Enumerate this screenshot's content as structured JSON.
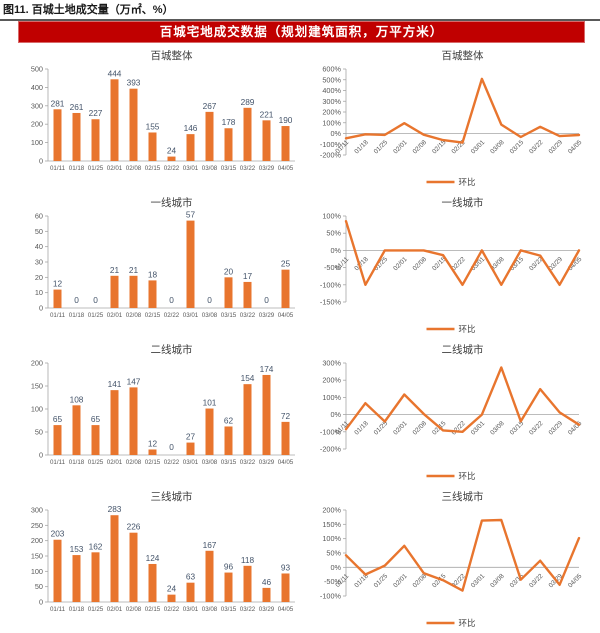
{
  "figure": {
    "title": "图11. 百城土地成交量（万㎡、%）"
  },
  "banner": {
    "text": "百城宅地成交数据（规划建筑面积，万平方米）"
  },
  "colors": {
    "accent_orange": "#E8752E",
    "banner_red": "#C00000",
    "axis_gray": "#A6A6A6",
    "axis_label": "#595959",
    "value_label": "#44546A",
    "title_text": "#3F3F3F"
  },
  "legend_label": "环比",
  "chart_data": [
    {
      "id": "citywide-bars",
      "type": "bar",
      "title": "百城整体",
      "categories": [
        "01/11",
        "01/18",
        "01/25",
        "02/01",
        "02/08",
        "02/15",
        "02/22",
        "03/01",
        "03/08",
        "03/15",
        "03/22",
        "03/29",
        "04/05"
      ],
      "values": [
        281,
        261,
        227,
        444,
        393,
        155,
        24,
        146,
        267,
        178,
        289,
        221,
        190
      ],
      "ylim": [
        0,
        500
      ],
      "ytick_step": 100,
      "unit": "",
      "grid": false
    },
    {
      "id": "citywide-wow",
      "type": "line",
      "title": "百城整体",
      "categories": [
        "01/11",
        "01/18",
        "01/25",
        "02/01",
        "02/08",
        "02/15",
        "02/22",
        "03/01",
        "03/08",
        "03/15",
        "03/22",
        "03/29",
        "04/05"
      ],
      "series": [
        {
          "name": "环比",
          "values": [
            -45,
            -7,
            -13,
            96,
            -11,
            -61,
            -85,
            508,
            83,
            -33,
            62,
            -24,
            -14
          ]
        }
      ],
      "ylim": [
        -200,
        600
      ],
      "ytick_step": 100,
      "unit": "%",
      "grid": false,
      "legend_position": "bottom"
    },
    {
      "id": "tier1-bars",
      "type": "bar",
      "title": "一线城市",
      "categories": [
        "01/11",
        "01/18",
        "01/25",
        "02/01",
        "02/08",
        "02/15",
        "02/22",
        "03/01",
        "03/08",
        "03/15",
        "03/22",
        "03/29",
        "04/05"
      ],
      "values": [
        12,
        0,
        0,
        21,
        21,
        18,
        0,
        57,
        0,
        20,
        17,
        0,
        25
      ],
      "ylim": [
        0,
        60
      ],
      "ytick_step": 10,
      "unit": "",
      "grid": false
    },
    {
      "id": "tier1-wow",
      "type": "line",
      "title": "一线城市",
      "categories": [
        "01/11",
        "01/18",
        "01/25",
        "02/01",
        "02/08",
        "02/15",
        "02/22",
        "03/01",
        "03/08",
        "03/15",
        "03/22",
        "03/29",
        "04/05"
      ],
      "series": [
        {
          "name": "环比",
          "values": [
            85,
            -100,
            0,
            0,
            0,
            -14,
            -100,
            0,
            -100,
            0,
            -15,
            -100,
            0
          ]
        }
      ],
      "ylim": [
        -150,
        100
      ],
      "ytick_step": 50,
      "unit": "%",
      "grid": false,
      "legend_position": "bottom"
    },
    {
      "id": "tier2-bars",
      "type": "bar",
      "title": "二线城市",
      "categories": [
        "01/11",
        "01/18",
        "01/25",
        "02/01",
        "02/08",
        "02/15",
        "02/22",
        "03/01",
        "03/08",
        "03/15",
        "03/22",
        "03/29",
        "04/05"
      ],
      "values": [
        65,
        108,
        65,
        141,
        147,
        12,
        0,
        27,
        101,
        62,
        154,
        174,
        72
      ],
      "ylim": [
        0,
        200
      ],
      "ytick_step": 50,
      "unit": "",
      "grid": false
    },
    {
      "id": "tier2-wow",
      "type": "line",
      "title": "二线城市",
      "categories": [
        "01/11",
        "01/18",
        "01/25",
        "02/01",
        "02/08",
        "02/15",
        "02/22",
        "03/01",
        "03/08",
        "03/15",
        "03/22",
        "03/29",
        "04/05"
      ],
      "series": [
        {
          "name": "环比",
          "values": [
            -85,
            66,
            -40,
            117,
            4,
            -92,
            -100,
            0,
            274,
            -39,
            148,
            13,
            -59
          ]
        }
      ],
      "ylim": [
        -200,
        300
      ],
      "ytick_step": 100,
      "unit": "%",
      "grid": false,
      "legend_position": "bottom"
    },
    {
      "id": "tier3-bars",
      "type": "bar",
      "title": "三线城市",
      "categories": [
        "01/11",
        "01/18",
        "01/25",
        "02/01",
        "02/08",
        "02/15",
        "02/22",
        "03/01",
        "03/08",
        "03/15",
        "03/22",
        "03/29",
        "04/05"
      ],
      "values": [
        203,
        153,
        162,
        283,
        226,
        124,
        24,
        63,
        167,
        96,
        118,
        46,
        93
      ],
      "ylim": [
        0,
        300
      ],
      "ytick_step": 50,
      "unit": "",
      "grid": false
    },
    {
      "id": "tier3-wow",
      "type": "line",
      "title": "三线城市",
      "categories": [
        "01/11",
        "01/18",
        "01/25",
        "02/01",
        "02/08",
        "02/15",
        "02/22",
        "03/01",
        "03/08",
        "03/15",
        "03/22",
        "03/29",
        "04/05"
      ],
      "series": [
        {
          "name": "环比",
          "values": [
            42,
            -25,
            6,
            75,
            -20,
            -45,
            -81,
            163,
            165,
            -43,
            23,
            -61,
            102
          ]
        }
      ],
      "ylim": [
        -100,
        200
      ],
      "ytick_step": 50,
      "unit": "%",
      "grid": false,
      "legend_position": "bottom"
    }
  ]
}
